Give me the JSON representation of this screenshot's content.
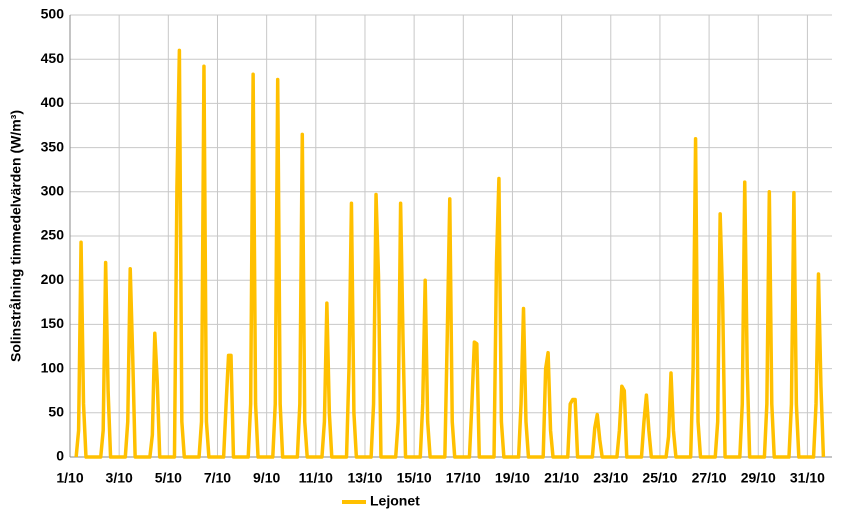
{
  "chart_data": {
    "type": "line",
    "y_label": "Solinstrålning timmedelvärden (W/m³)",
    "xlim": [
      1,
      32
    ],
    "ylim": [
      0,
      500
    ],
    "yticks": [
      0,
      50,
      100,
      150,
      200,
      250,
      300,
      350,
      400,
      450,
      500
    ],
    "xticks": [
      {
        "value": 1,
        "label": "1/10"
      },
      {
        "value": 3,
        "label": "3/10"
      },
      {
        "value": 5,
        "label": "5/10"
      },
      {
        "value": 7,
        "label": "7/10"
      },
      {
        "value": 9,
        "label": "9/10"
      },
      {
        "value": 11,
        "label": "11/10"
      },
      {
        "value": 13,
        "label": "13/10"
      },
      {
        "value": 15,
        "label": "15/10"
      },
      {
        "value": 17,
        "label": "17/10"
      },
      {
        "value": 19,
        "label": "19/10"
      },
      {
        "value": 21,
        "label": "21/10"
      },
      {
        "value": 23,
        "label": "23/10"
      },
      {
        "value": 25,
        "label": "25/10"
      },
      {
        "value": 27,
        "label": "27/10"
      },
      {
        "value": 29,
        "label": "29/10"
      },
      {
        "value": 31,
        "label": "31/10"
      }
    ],
    "grid": true,
    "legend": "bottom",
    "x": [
      1.25,
      1.35,
      1.45,
      1.55,
      1.65,
      2.25,
      2.35,
      2.45,
      2.55,
      2.65,
      3.25,
      3.35,
      3.45,
      3.55,
      3.65,
      4.25,
      4.35,
      4.45,
      4.55,
      4.65,
      5.25,
      5.35,
      5.45,
      5.55,
      5.65,
      6.25,
      6.35,
      6.45,
      6.55,
      6.65,
      7.25,
      7.35,
      7.45,
      7.55,
      7.65,
      8.25,
      8.35,
      8.45,
      8.55,
      8.65,
      9.25,
      9.35,
      9.45,
      9.55,
      9.65,
      10.25,
      10.35,
      10.45,
      10.55,
      10.65,
      11.25,
      11.35,
      11.45,
      11.55,
      11.65,
      12.25,
      12.35,
      12.45,
      12.55,
      12.65,
      13.25,
      13.35,
      13.45,
      13.55,
      13.65,
      14.25,
      14.35,
      14.45,
      14.55,
      14.65,
      15.25,
      15.35,
      15.45,
      15.55,
      15.65,
      16.25,
      16.35,
      16.45,
      16.55,
      16.65,
      17.25,
      17.35,
      17.45,
      17.55,
      17.65,
      18.25,
      18.35,
      18.45,
      18.55,
      18.65,
      19.25,
      19.35,
      19.45,
      19.55,
      19.65,
      20.25,
      20.35,
      20.45,
      20.55,
      20.65,
      21.25,
      21.35,
      21.45,
      21.55,
      21.65,
      22.25,
      22.35,
      22.45,
      22.55,
      22.65,
      23.25,
      23.35,
      23.45,
      23.55,
      23.65,
      24.25,
      24.35,
      24.45,
      24.55,
      24.65,
      25.25,
      25.35,
      25.45,
      25.55,
      25.65,
      26.25,
      26.35,
      26.45,
      26.55,
      26.65,
      27.25,
      27.35,
      27.45,
      27.55,
      27.65,
      28.25,
      28.35,
      28.45,
      28.55,
      28.65,
      29.25,
      29.35,
      29.45,
      29.55,
      29.65,
      30.25,
      30.35,
      30.45,
      30.55,
      30.65,
      31.25,
      31.35,
      31.45,
      31.55,
      31.65
    ],
    "series": [
      {
        "name": "Lejonet",
        "color": "#FFC000",
        "values": [
          0,
          30,
          243,
          60,
          0,
          0,
          30,
          220,
          75,
          0,
          0,
          40,
          213,
          115,
          0,
          0,
          25,
          140,
          85,
          0,
          0,
          305,
          460,
          40,
          0,
          0,
          40,
          442,
          40,
          0,
          0,
          60,
          115,
          115,
          0,
          0,
          60,
          433,
          60,
          0,
          0,
          60,
          427,
          60,
          0,
          0,
          60,
          365,
          40,
          0,
          0,
          40,
          174,
          50,
          0,
          0,
          100,
          287,
          50,
          0,
          0,
          60,
          297,
          205,
          0,
          0,
          40,
          287,
          130,
          0,
          0,
          60,
          200,
          40,
          0,
          0,
          140,
          292,
          40,
          0,
          0,
          60,
          130,
          128,
          0,
          0,
          220,
          315,
          40,
          0,
          0,
          60,
          168,
          40,
          0,
          0,
          100,
          118,
          30,
          0,
          0,
          60,
          65,
          65,
          0,
          0,
          33,
          48,
          20,
          0,
          0,
          30,
          80,
          75,
          0,
          0,
          40,
          70,
          30,
          0,
          0,
          23,
          95,
          30,
          0,
          0,
          100,
          360,
          40,
          0,
          0,
          40,
          275,
          180,
          0,
          0,
          60,
          311,
          100,
          0,
          0,
          60,
          300,
          60,
          0,
          0,
          60,
          299,
          60,
          0,
          0,
          60,
          207,
          80,
          0
        ]
      }
    ]
  }
}
